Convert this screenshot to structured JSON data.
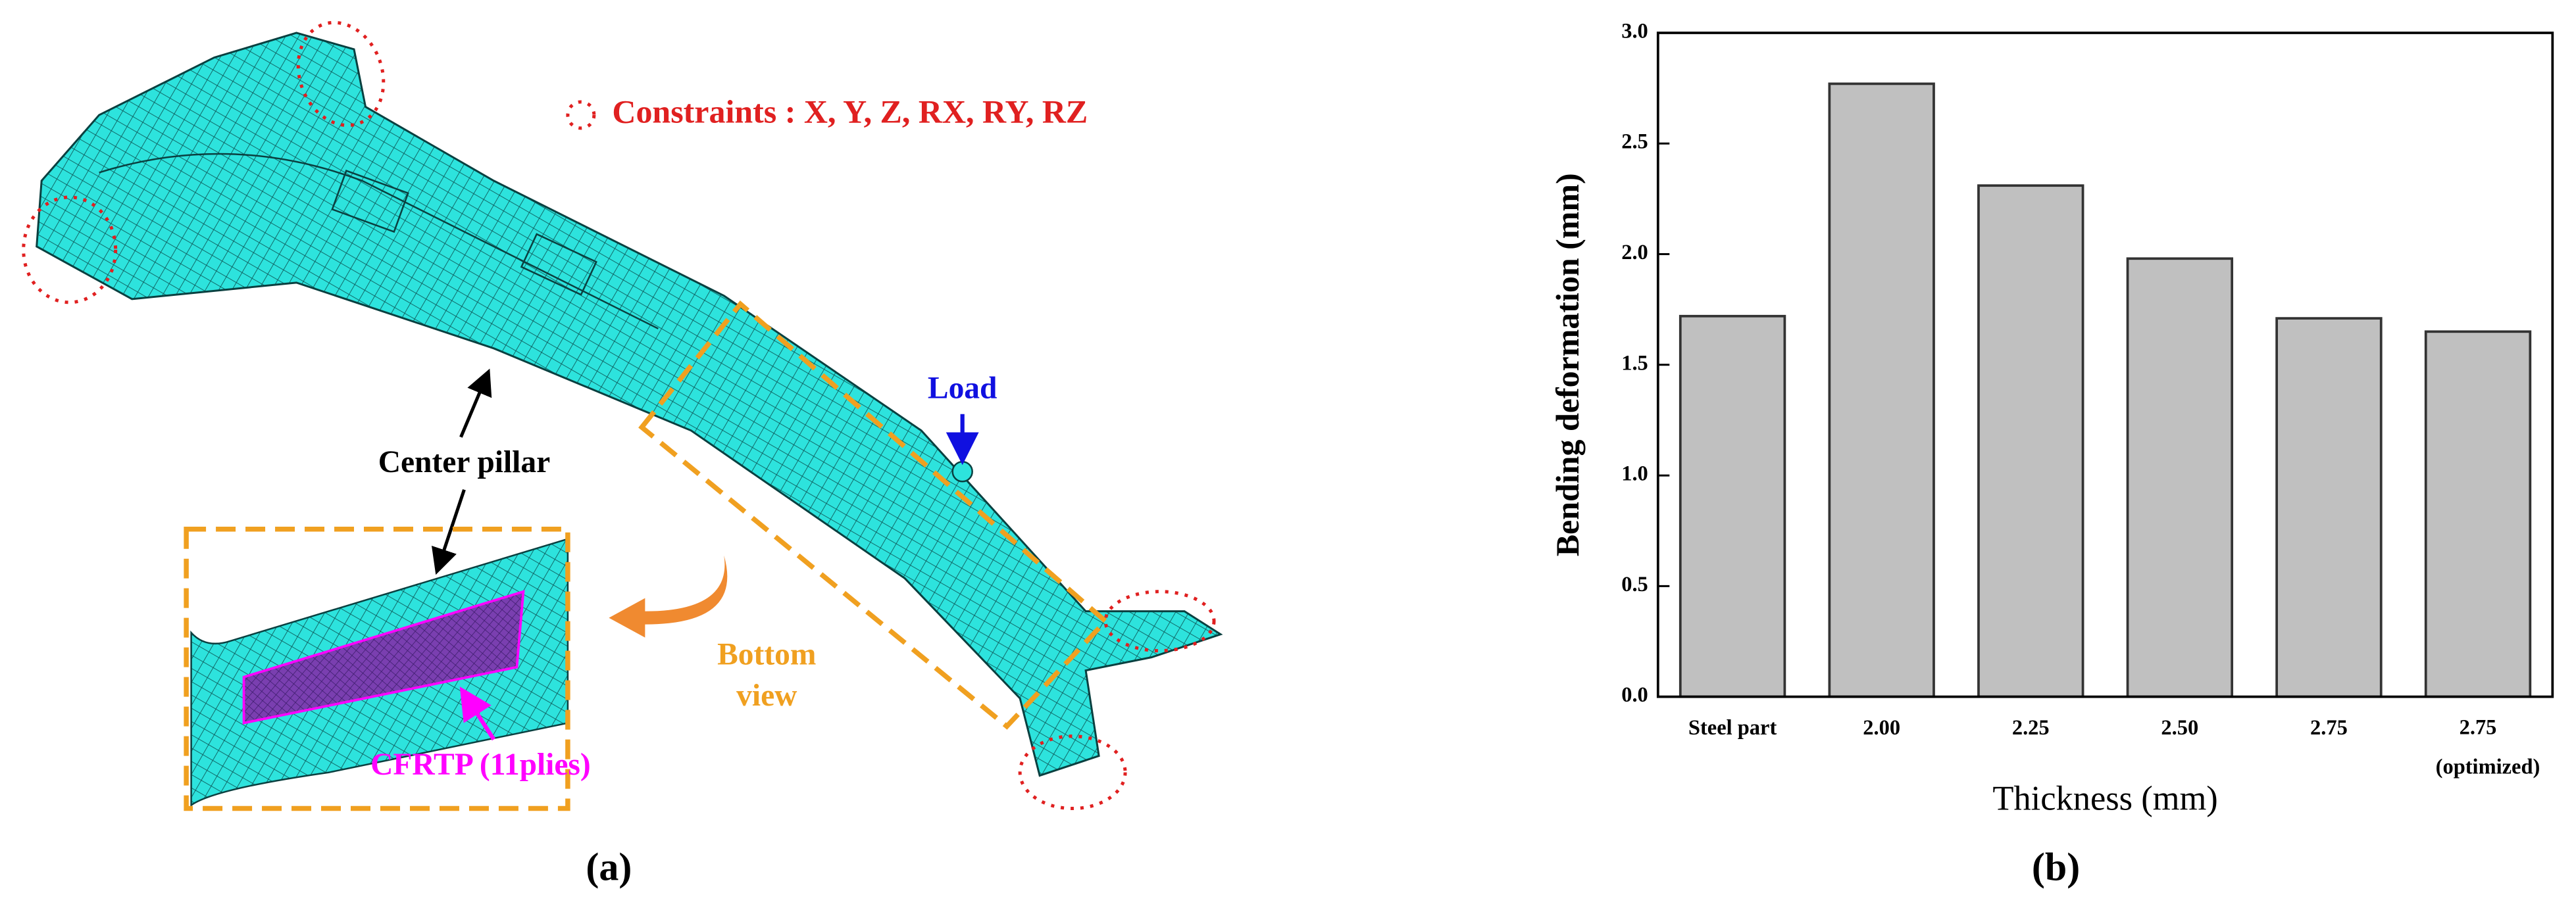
{
  "figure": {
    "panel_a": {
      "label": "(a)",
      "constraints": "Constraints : X, Y, Z, RX, RY, RZ",
      "load": "Load",
      "center_pillar": "Center pillar",
      "bottom_view": [
        "Bottom",
        "view"
      ],
      "cfrtp": "CFRTP (11plies)"
    },
    "panel_b_label": "(b)"
  },
  "chart_data": {
    "type": "bar",
    "categories": [
      "Steel part",
      "2.00",
      "2.25",
      "2.50",
      "2.75",
      "2.75\n(optimized)"
    ],
    "values": [
      1.72,
      2.77,
      2.31,
      1.98,
      1.71,
      1.65
    ],
    "color": "#c0c0c0",
    "xlabel": "Thickness (mm)",
    "ylabel": "Bending deformation (mm)",
    "ylim": [
      0,
      3
    ],
    "yticks": [
      {
        "value": 0,
        "label": "0.0"
      },
      0.5,
      {
        "value": 1,
        "label": "1.0"
      },
      1.5,
      {
        "value": 2,
        "label": "2.0"
      },
      2.5,
      {
        "value": 3,
        "label": "3.0"
      }
    ],
    "grid": false
  }
}
